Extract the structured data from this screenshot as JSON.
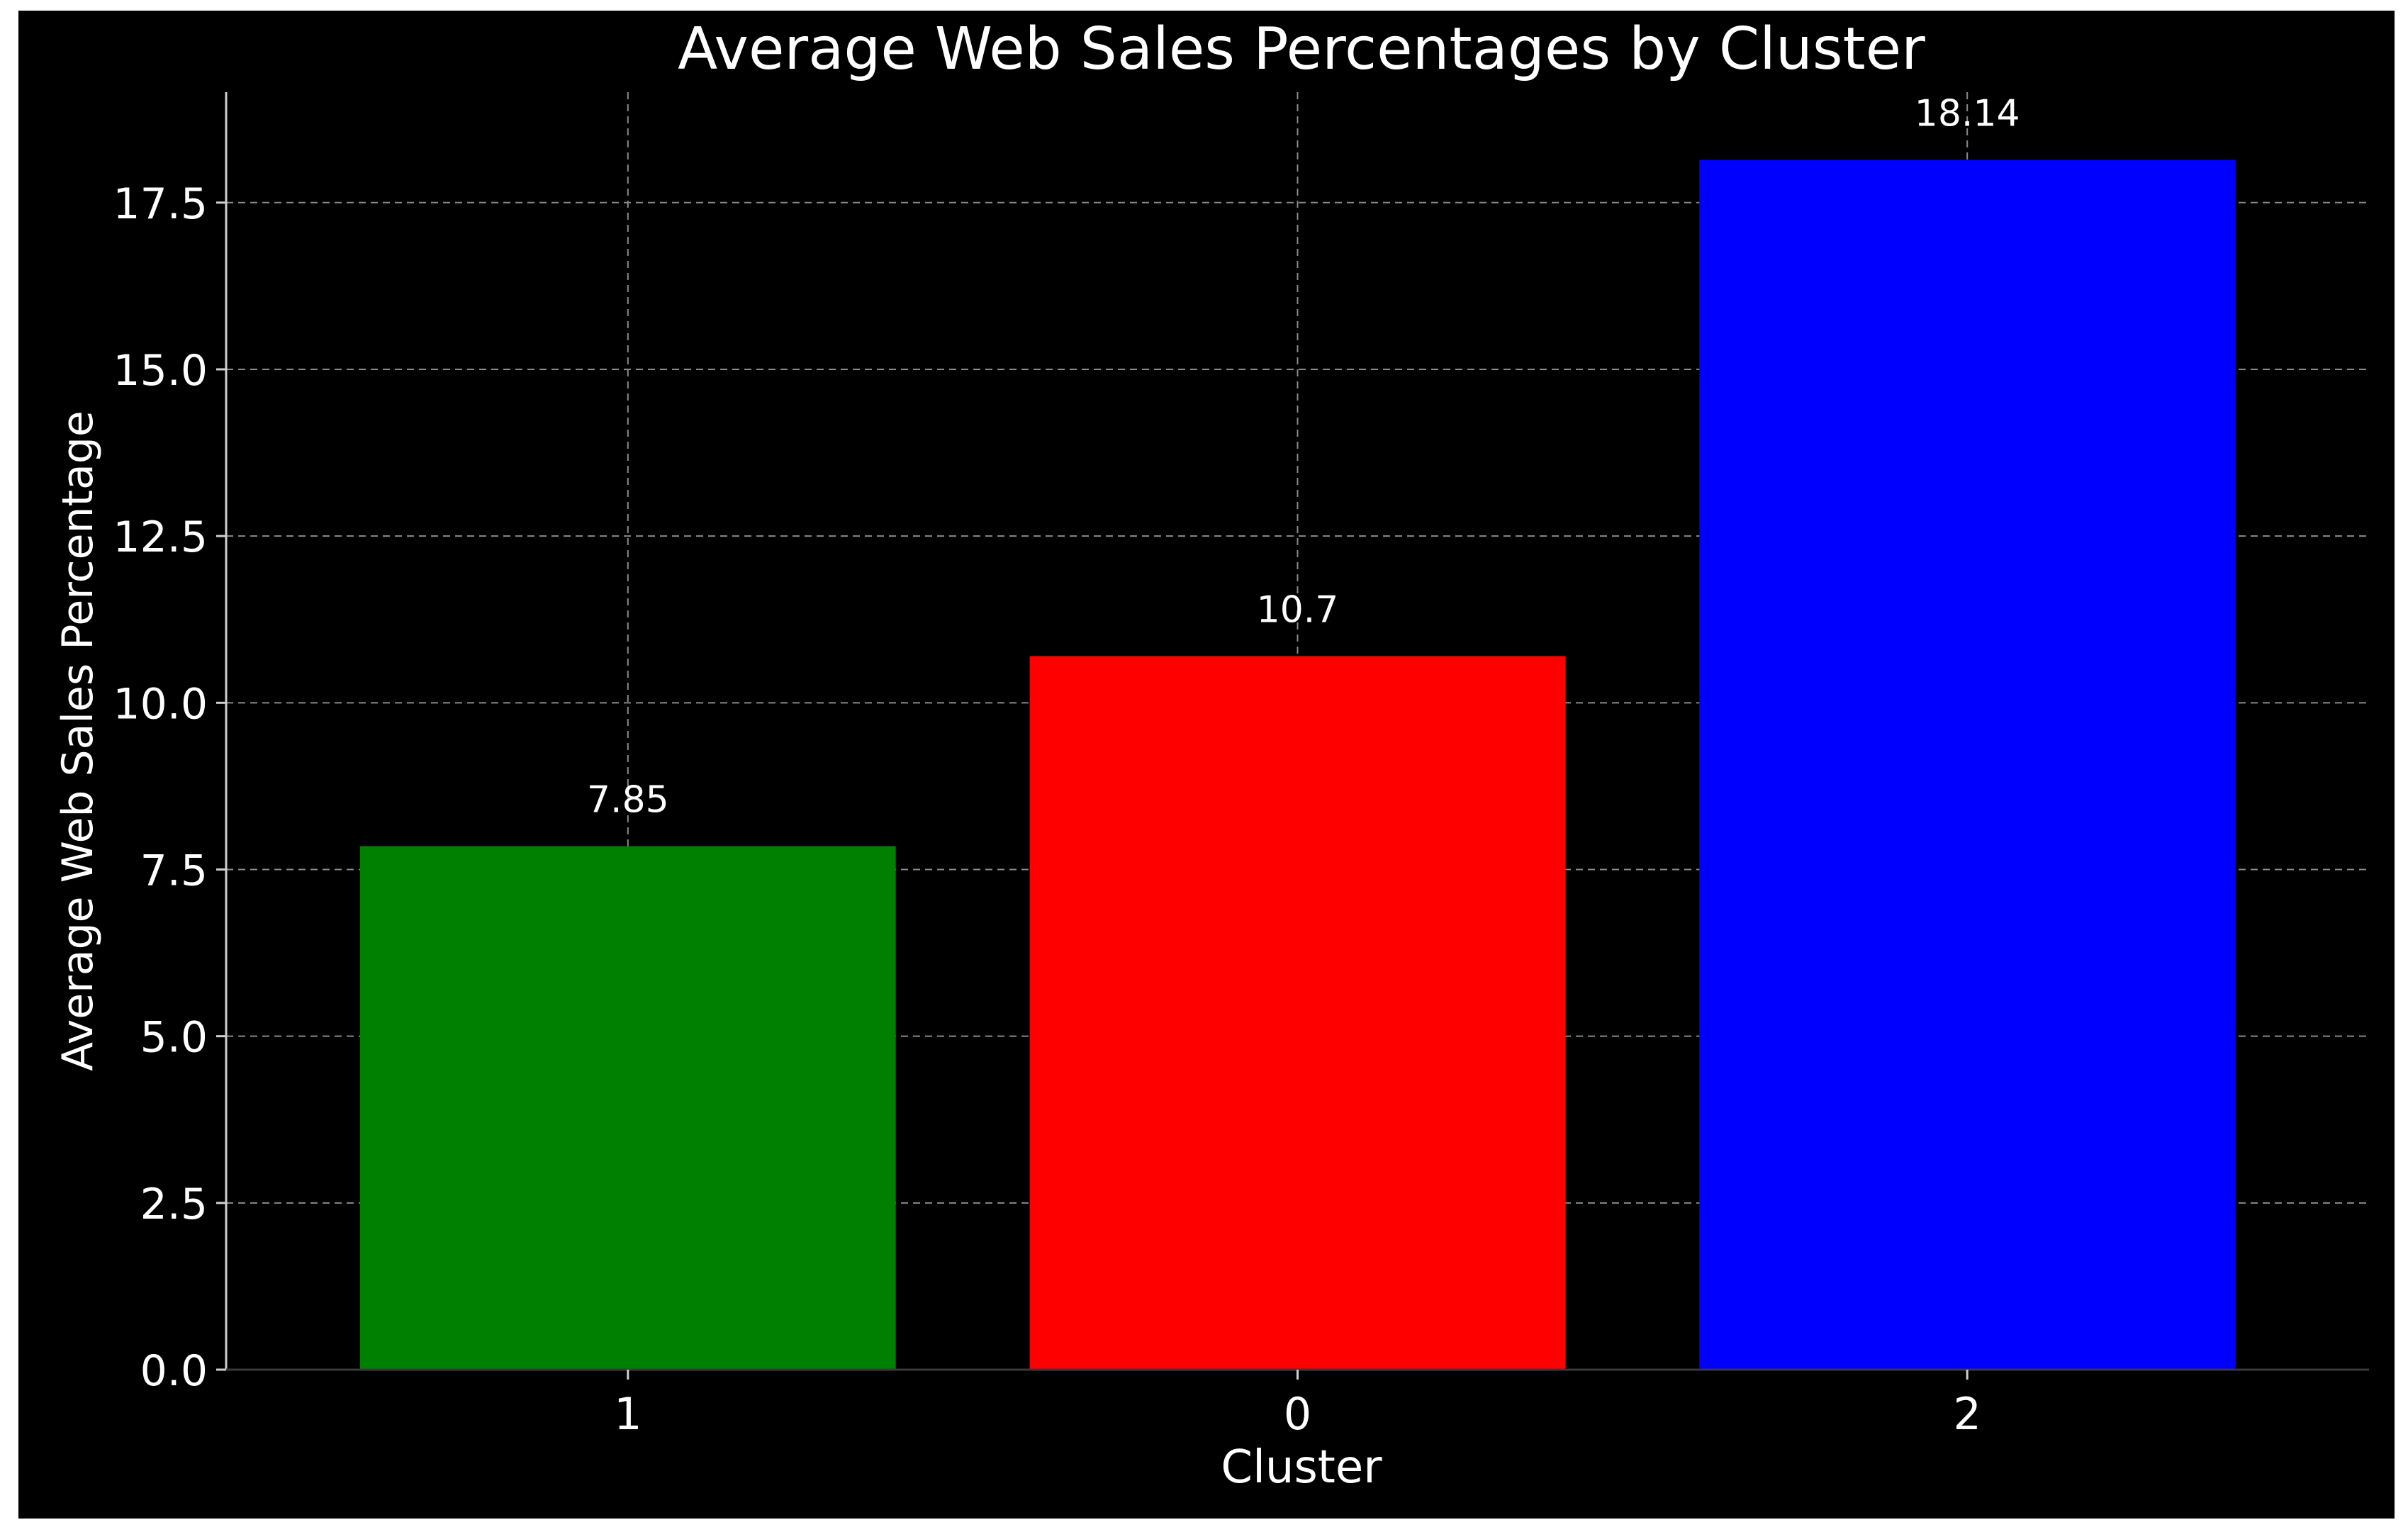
{
  "chart_data": {
    "type": "bar",
    "title": "Average Web Sales Percentages by Cluster",
    "xlabel": "Cluster",
    "ylabel": "Average Web Sales Percentage",
    "categories": [
      "1",
      "0",
      "2"
    ],
    "values": [
      7.85,
      10.7,
      18.14
    ],
    "data_labels": [
      "7.85",
      "10.7",
      "18.14"
    ],
    "colors": [
      "#008000",
      "#ff0000",
      "#0000ff"
    ],
    "ylim": [
      0,
      19.05
    ],
    "yticks": [
      0.0,
      2.5,
      5.0,
      7.5,
      10.0,
      12.5,
      15.0,
      17.5
    ],
    "ytick_labels": [
      "0.0",
      "2.5",
      "5.0",
      "7.5",
      "10.0",
      "12.5",
      "15.0",
      "17.5"
    ],
    "grid": true,
    "background": "#000000",
    "text_color": "#ffffff",
    "grid_color": "#8a8a8a"
  }
}
